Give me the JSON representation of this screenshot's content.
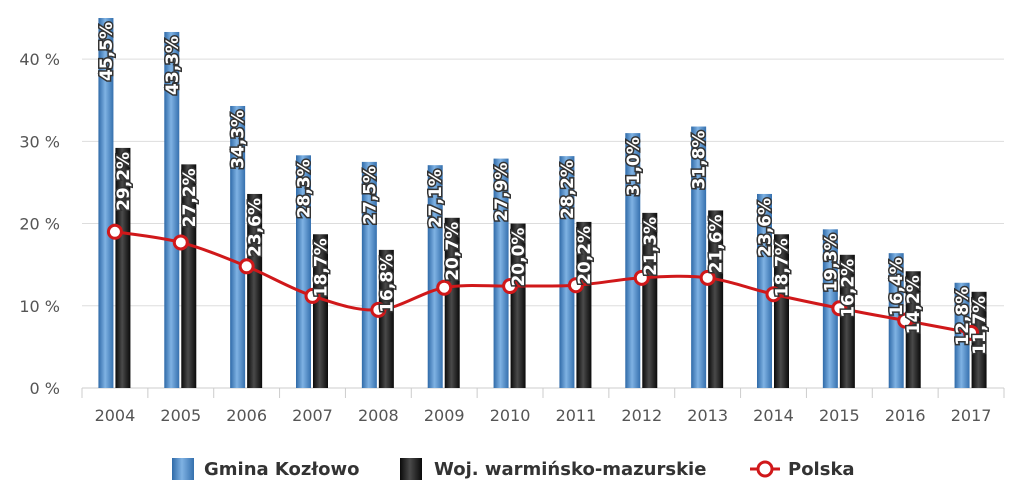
{
  "chart_data": {
    "type": "bar",
    "categories": [
      "2004",
      "2005",
      "2006",
      "2007",
      "2008",
      "2009",
      "2010",
      "2011",
      "2012",
      "2013",
      "2014",
      "2015",
      "2016",
      "2017"
    ],
    "ylim": [
      0,
      45
    ],
    "yticks": [
      0,
      10,
      20,
      30,
      40
    ],
    "ytick_labels": [
      "0 %",
      "10 %",
      "20 %",
      "30 %",
      "40 %"
    ],
    "grid": true,
    "legend_position": "bottom",
    "series": [
      {
        "name": "Gmina Kozłowo",
        "kind": "bar",
        "color": "#4a86c5",
        "values": [
          45.5,
          43.3,
          34.3,
          28.3,
          27.5,
          27.1,
          27.9,
          28.2,
          31.0,
          31.8,
          23.6,
          19.3,
          16.4,
          12.8
        ],
        "labels": [
          "45,5%",
          "43,3%",
          "34,3%",
          "28,3%",
          "27,5%",
          "27,1%",
          "27,9%",
          "28,2%",
          "31,0%",
          "31,8%",
          "23,6%",
          "19,3%",
          "16,4%",
          "12,8%"
        ]
      },
      {
        "name": "Woj. warmińsko-mazurskie",
        "kind": "bar",
        "color": "#1a1a1a",
        "values": [
          29.2,
          27.2,
          23.6,
          18.7,
          16.8,
          20.7,
          20.0,
          20.2,
          21.3,
          21.6,
          18.7,
          16.2,
          14.2,
          11.7
        ],
        "labels": [
          "29,2%",
          "27,2%",
          "23,6%",
          "18,7%",
          "16,8%",
          "20,7%",
          "20,0%",
          "20,2%",
          "21,3%",
          "21,6%",
          "18,7%",
          "16,2%",
          "14,2%",
          "11,7%"
        ]
      },
      {
        "name": "Polska",
        "kind": "line",
        "color": "#d0181a",
        "values": [
          19.0,
          17.7,
          14.8,
          11.2,
          9.5,
          12.2,
          12.4,
          12.5,
          13.4,
          13.4,
          11.4,
          9.7,
          8.2,
          6.7
        ]
      }
    ]
  }
}
